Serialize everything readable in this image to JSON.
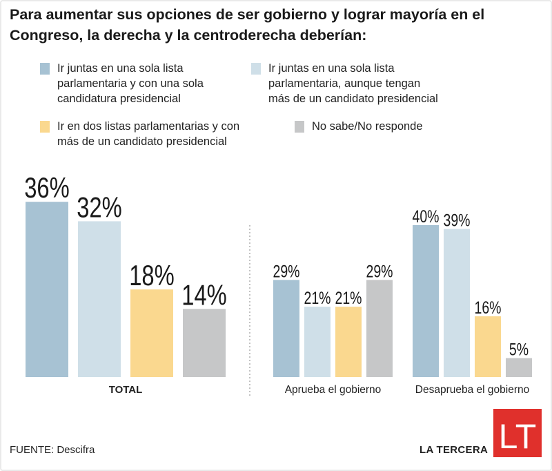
{
  "title": "Para aumentar sus opciones de ser gobierno y lograr mayoría en el Congreso, la derecha y la centroderecha deberían:",
  "legend": [
    {
      "label": "Ir juntas en una sola lista\nparlamentaria y con una sola\ncandidatura presidencial",
      "color": "#a7c2d3"
    },
    {
      "label": "Ir juntas en una sola lista\nparlamentaria, aunque tengan\nmás de un candidato presidencial",
      "color": "#cfdfe8"
    },
    {
      "label": "Ir en dos listas parlamentarias y con\nmás de un candidato presidencial",
      "color": "#fad88f"
    },
    {
      "label": "No sabe/No responde",
      "color": "#c6c7c8"
    }
  ],
  "chart_data": {
    "type": "bar",
    "unit": "%",
    "categories": [
      "TOTAL",
      "Aprueba el gobierno",
      "Desaprueba el gobierno"
    ],
    "series": [
      {
        "name": "Ir juntas en una sola lista parlamentaria y con una sola candidatura presidencial",
        "values": [
          36,
          29,
          40
        ],
        "color": "#a7c2d3"
      },
      {
        "name": "Ir juntas en una sola lista parlamentaria, aunque tengan más de un candidato presidencial",
        "values": [
          32,
          21,
          39
        ],
        "color": "#cfdfe8"
      },
      {
        "name": "Ir en dos listas parlamentarias y con más de un candidato presidencial",
        "values": [
          18,
          21,
          16
        ],
        "color": "#fad88f"
      },
      {
        "name": "No sabe/No responde",
        "values": [
          14,
          29,
          5
        ],
        "color": "#c6c7c8"
      }
    ],
    "value_labels": [
      [
        "36%",
        "32%",
        "18%",
        "14%"
      ],
      [
        "29%",
        "21%",
        "21%",
        "29%"
      ],
      [
        "40%",
        "39%",
        "16%",
        "5%"
      ]
    ]
  },
  "footer": {
    "source": "FUENTE: Descifra",
    "brand": "LA TERCERA",
    "logo_text": "LT"
  }
}
